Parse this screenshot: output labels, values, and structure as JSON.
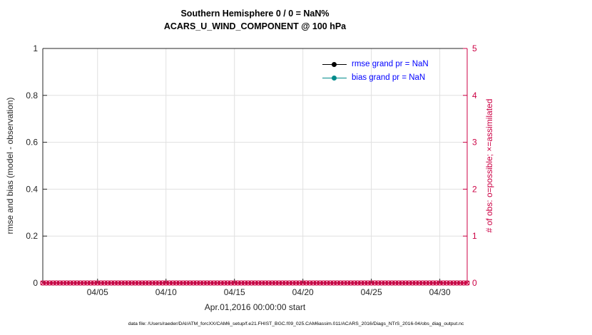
{
  "title": {
    "line1": "Southern Hemisphere 0 / 0 = NaN%",
    "line2": "ACARS_U_WIND_COMPONENT @ 100 hPa"
  },
  "x_axis_label": "Apr.01,2016 00:00:00 start",
  "footer_text": "data file: /Users/raeder/DAI/ATM_forcXX/CAM6_setup/f.e21.FHIST_BGC.f09_025.CAM6assim.011/ACARS_2016/Diags_NTrS_2016-04/obs_diag_output.nc",
  "colors": {
    "axis": "#262626",
    "grid": "#e0e0e0",
    "crimson": "#cc0044",
    "legend_text": "#0000ff",
    "rmse": "#000000",
    "bias": "#008b8b"
  },
  "chart_data": {
    "type": "line",
    "title": "Southern Hemisphere 0 / 0 = NaN% — ACARS_U_WIND_COMPONENT @ 100 hPa",
    "xlabel": "Apr.01,2016 00:00:00 start",
    "x_range_days": [
      0,
      31
    ],
    "x_ticks": [
      {
        "day": 4,
        "label": "04/05"
      },
      {
        "day": 9,
        "label": "04/10"
      },
      {
        "day": 14,
        "label": "04/15"
      },
      {
        "day": 19,
        "label": "04/20"
      },
      {
        "day": 24,
        "label": "04/25"
      },
      {
        "day": 29,
        "label": "04/30"
      }
    ],
    "left_axis": {
      "label": "rmse and bias (model - observation)",
      "lim": [
        0,
        1
      ],
      "ticks": [
        0,
        0.2,
        0.4,
        0.6,
        0.8,
        1
      ],
      "color": "#262626"
    },
    "right_axis": {
      "label": "# of obs: o=possible; ×=assimilated",
      "lim": [
        0,
        5
      ],
      "ticks": [
        0,
        1,
        2,
        3,
        4,
        5
      ],
      "color": "#cc0044"
    },
    "series": [
      {
        "name": "rmse grand pr = NaN",
        "color": "#000000",
        "values": []
      },
      {
        "name": "bias grand pr = NaN",
        "color": "#008b8b",
        "values": []
      }
    ],
    "obs_markers": {
      "description": "possible (o) and assimilated (x) obs counts, all zero",
      "x_start_day": 0,
      "x_end_day": 31,
      "x_step_days": 0.25,
      "value": 0,
      "color": "#cc0044"
    },
    "grid": true,
    "legend_position": "inside-top-right"
  }
}
